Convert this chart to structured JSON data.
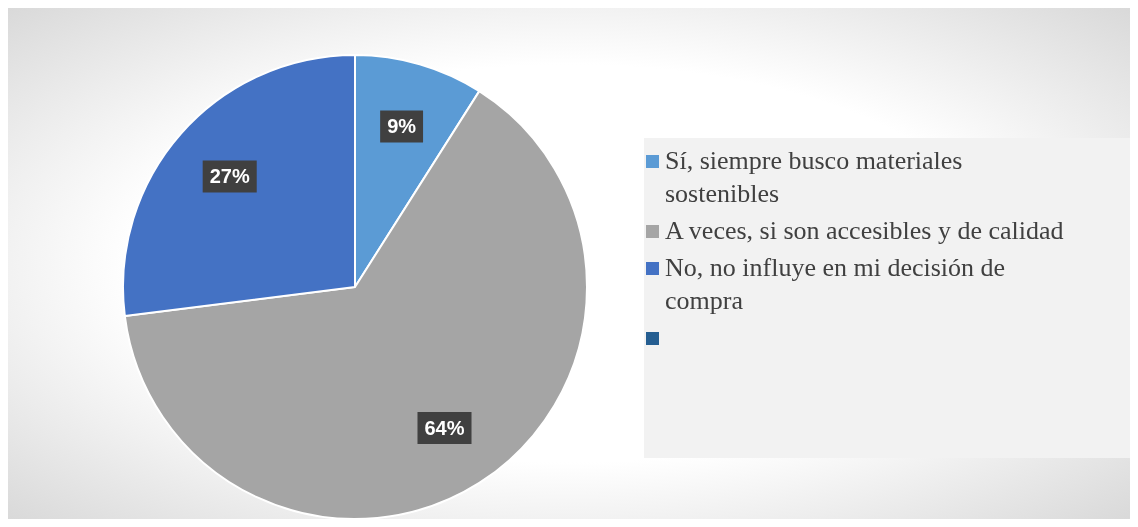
{
  "chart_data": {
    "type": "pie",
    "categories": [
      "Sí, siempre busco materiales sostenibles",
      "A veces, si son accesibles y de calidad",
      "No, no influye en mi decisión de compra",
      null
    ],
    "values": [
      9,
      64,
      27,
      0
    ],
    "colors": [
      "#5b9bd5",
      "#a5a5a5",
      "#4472c4",
      "#255e91"
    ],
    "value_labels": [
      "9%",
      "64%",
      "27%",
      null
    ],
    "legend": "right"
  }
}
